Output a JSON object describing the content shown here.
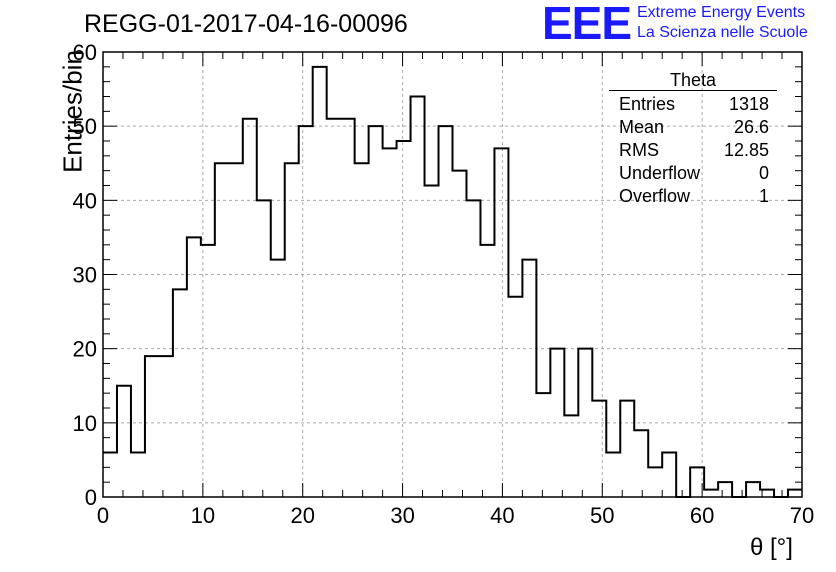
{
  "title": "REGG-01-2017-04-16-00096",
  "logo": {
    "mark": "EEE",
    "line1": "Extreme Energy Events",
    "line2": "La Scienza nelle Scuole",
    "color": "#1a1aff"
  },
  "stats": {
    "title": "Theta",
    "rows": [
      {
        "label": "Entries",
        "value": "1318"
      },
      {
        "label": "Mean",
        "value": "26.6"
      },
      {
        "label": "RMS",
        "value": "12.85"
      },
      {
        "label": "Underflow",
        "value": "0"
      },
      {
        "label": "Overflow",
        "value": "1"
      }
    ]
  },
  "chart_data": {
    "type": "bar",
    "style": "step-histogram",
    "xlabel": "θ [°]",
    "ylabel": "Entries/bin",
    "xlim": [
      0,
      70
    ],
    "ylim": [
      0,
      60
    ],
    "xticks": [
      0,
      10,
      20,
      30,
      40,
      50,
      60,
      70
    ],
    "yticks": [
      0,
      10,
      20,
      30,
      40,
      50,
      60
    ],
    "grid": true,
    "bin_width": 1.4,
    "bin_edges_start": 0,
    "values": [
      6,
      15,
      6,
      19,
      19,
      28,
      35,
      34,
      45,
      45,
      51,
      40,
      32,
      45,
      50,
      58,
      51,
      51,
      45,
      50,
      47,
      48,
      54,
      42,
      50,
      44,
      40,
      34,
      47,
      27,
      32,
      14,
      20,
      11,
      20,
      13,
      6,
      13,
      9,
      4,
      6,
      0,
      4,
      1,
      2,
      0,
      2,
      1,
      0,
      1
    ],
    "series_color": "#000000"
  }
}
